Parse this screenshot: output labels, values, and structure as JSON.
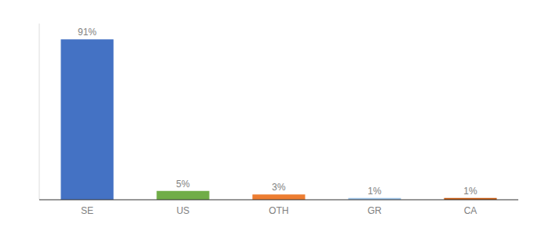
{
  "chart_data": {
    "type": "bar",
    "categories": [
      "SE",
      "US",
      "OTH",
      "GR",
      "CA"
    ],
    "values": [
      91,
      5,
      3,
      1,
      1
    ],
    "value_labels": [
      "91%",
      "5%",
      "3%",
      "1%",
      "1%"
    ],
    "colors": [
      "#4472c4",
      "#70ad47",
      "#ed7d31",
      "#9dc3e6",
      "#c55a11"
    ],
    "ylim": [
      0,
      100
    ],
    "grid": false,
    "data_labels": true,
    "tick_labels": "x"
  }
}
